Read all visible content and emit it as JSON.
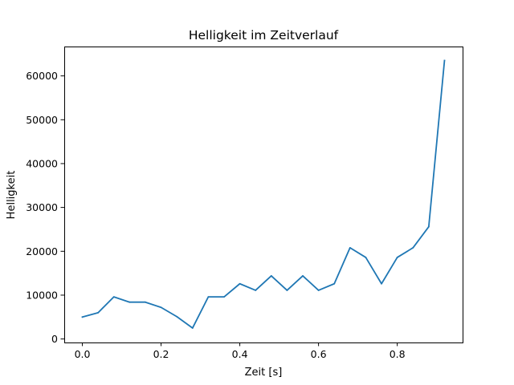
{
  "chart_data": {
    "type": "line",
    "title": "Helligkeit im Zeitverlauf",
    "xlabel": "Zeit [s]",
    "ylabel": "Helligkeit",
    "xlim": [
      -0.046,
      0.966
    ],
    "ylim": [
      -800,
      66700
    ],
    "xticks": [
      0.0,
      0.2,
      0.4,
      0.6,
      0.8
    ],
    "xtick_labels": [
      "0.0",
      "0.2",
      "0.4",
      "0.6",
      "0.8"
    ],
    "yticks": [
      0,
      10000,
      20000,
      30000,
      40000,
      50000,
      60000
    ],
    "ytick_labels": [
      "0",
      "10000",
      "20000",
      "30000",
      "40000",
      "50000",
      "60000"
    ],
    "grid": false,
    "series": [
      {
        "color": "#1f77b4",
        "x": [
          0.0,
          0.04,
          0.08,
          0.12,
          0.16,
          0.2,
          0.24,
          0.28,
          0.32,
          0.36,
          0.4,
          0.44,
          0.48,
          0.52,
          0.56,
          0.6,
          0.64,
          0.68,
          0.72,
          0.76,
          0.8,
          0.84,
          0.88,
          0.92
        ],
        "y": [
          5000,
          6000,
          9600,
          8400,
          8400,
          7200,
          5100,
          2500,
          9600,
          9600,
          12600,
          11100,
          14400,
          11100,
          14400,
          11100,
          12600,
          20800,
          18600,
          12600,
          18600,
          20800,
          25600,
          63500
        ]
      }
    ]
  }
}
